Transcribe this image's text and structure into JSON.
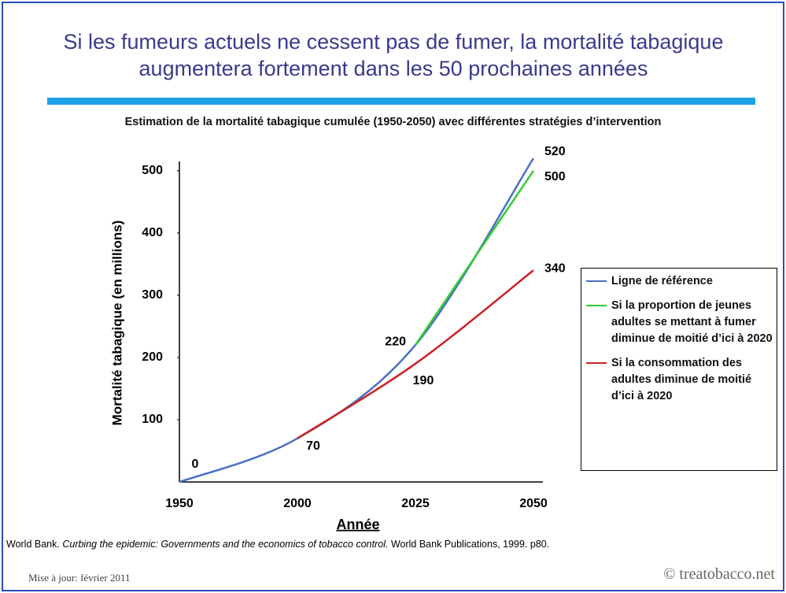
{
  "chart_data": {
    "type": "line",
    "title": "Si les fumeurs actuels ne cessent pas de fumer, la mortalité tabagique augmentera fortement dans les 50 prochaines années",
    "subtitle": "Estimation de la mortalité tabagique cumulée (1950-2050) avec différentes stratégies d’intervention",
    "ylabel": "Mortalité tabagique (en millions)",
    "xlabel": "Année",
    "categories": [
      "1950",
      "2000",
      "2025",
      "2050"
    ],
    "series": [
      {
        "name": "Ligne de référence",
        "color": "#4a6fc4",
        "values": [
          0,
          70,
          220,
          520
        ]
      },
      {
        "name": "Si la proportion de jeunes adultes se mettant à fumer diminue de moitié d’ici à 2020",
        "color": "#33cc33",
        "values": [
          null,
          null,
          220,
          500
        ]
      },
      {
        "name": "Si la consommation des adultes diminue de moitié d’ici à 2020",
        "color": "#cc2222",
        "values": [
          null,
          70,
          190,
          340
        ]
      }
    ],
    "ylim": [
      0,
      520
    ],
    "yticks": [
      100,
      200,
      300,
      400,
      500
    ]
  },
  "source": {
    "author": "World Bank.",
    "work": "Curbing the epidemic: Governments and the economics of tobacco control.",
    "publisher": "World Bank Publications, 1999. p80."
  },
  "footer": {
    "updated": "Mise à jour: février 2011",
    "site": "© treatobacco.net"
  }
}
